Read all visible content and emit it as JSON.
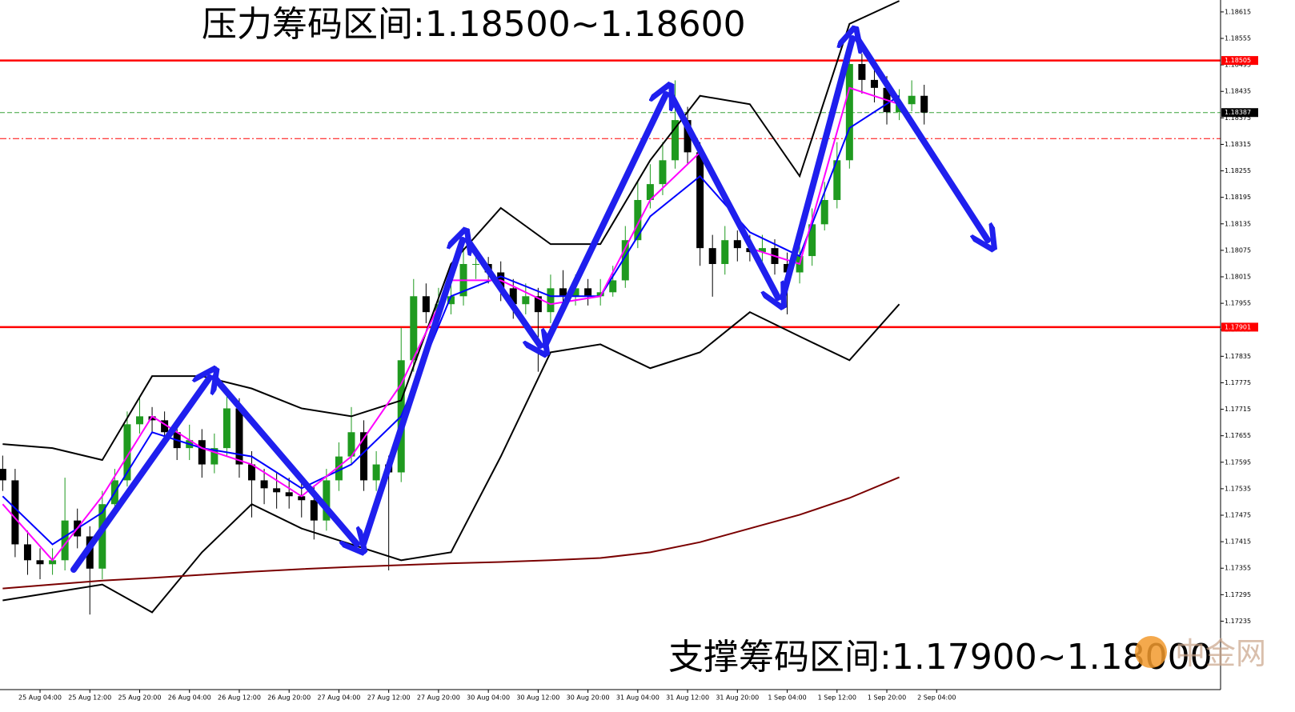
{
  "chart_data": {
    "type": "candlestick",
    "title": "压力筹码区间:1.18500~1.18600",
    "subtitle": "支撑筹码区间:1.17900~1.18000",
    "watermark": "中金网",
    "x": [
      -6,
      -4,
      -2,
      0,
      2,
      4,
      6,
      8,
      10,
      12,
      14,
      16,
      18,
      20,
      22,
      24,
      26,
      28,
      30,
      32,
      34,
      36,
      38,
      40,
      42,
      44,
      46,
      48,
      50,
      52,
      54,
      56,
      58,
      60,
      62,
      64,
      66,
      68,
      70,
      72,
      74,
      76,
      78,
      80,
      82,
      84,
      86,
      88,
      90,
      92,
      94,
      96,
      98,
      100,
      102,
      104,
      106,
      108,
      110,
      112,
      114,
      116,
      118,
      120,
      122,
      124,
      126,
      128,
      130,
      132,
      134,
      136,
      138,
      140,
      142
    ],
    "open": [
      1.1758,
      1.17554,
      1.17409,
      1.17373,
      1.17364,
      1.17373,
      1.17463,
      1.17427,
      1.17354,
      1.175,
      1.17554,
      1.17681,
      1.17699,
      1.1769,
      1.17663,
      1.17627,
      1.17645,
      1.1759,
      1.17627,
      1.17717,
      1.1759,
      1.17554,
      1.17536,
      1.17527,
      1.17518,
      1.17509,
      1.17463,
      1.17554,
      1.17608,
      1.17663,
      1.17554,
      1.1759,
      1.17572,
      1.17826,
      1.17971,
      1.17935,
      1.17953,
      1.17971,
      1.18044,
      1.18044,
      1.18025,
      1.17989,
      1.17953,
      1.17971,
      1.17935,
      1.17989,
      1.17971,
      1.17989,
      1.17971,
      1.1798,
      1.18007,
      1.18098,
      1.18189,
      1.18225,
      1.18279,
      1.1837,
      1.18297,
      1.1808,
      1.18044,
      1.18098,
      1.1808,
      1.18071,
      1.1808,
      1.18044,
      1.18025,
      1.18062,
      1.18134,
      1.18189,
      1.18279,
      1.18497,
      1.18461,
      1.18443,
      1.18388,
      1.18406,
      1.18425
    ],
    "high": [
      1.1761,
      1.1758,
      1.1744,
      1.174,
      1.174,
      1.1756,
      1.1749,
      1.1745,
      1.1753,
      1.1758,
      1.1771,
      1.1774,
      1.1772,
      1.1771,
      1.1769,
      1.1768,
      1.1767,
      1.1766,
      1.1775,
      1.1774,
      1.1762,
      1.1758,
      1.1757,
      1.1756,
      1.1755,
      1.1754,
      1.1758,
      1.1764,
      1.1772,
      1.1769,
      1.1762,
      1.1761,
      1.179,
      1.1801,
      1.18,
      1.1799,
      1.1801,
      1.1808,
      1.1807,
      1.1806,
      1.1805,
      1.1801,
      1.18,
      1.1799,
      1.1802,
      1.1803,
      1.1802,
      1.1801,
      1.1801,
      1.1804,
      1.1813,
      1.1823,
      1.1827,
      1.1832,
      1.1846,
      1.184,
      1.1832,
      1.1811,
      1.1813,
      1.1812,
      1.1811,
      1.1811,
      1.181,
      1.1807,
      1.1809,
      1.1817,
      1.1823,
      1.1832,
      1.1856,
      1.1852,
      1.1849,
      1.1847,
      1.1844,
      1.1846,
      1.1845
    ],
    "low": [
      1.1753,
      1.1738,
      1.1734,
      1.1733,
      1.1734,
      1.1735,
      1.174,
      1.1725,
      1.1733,
      1.1748,
      1.1754,
      1.1766,
      1.1766,
      1.1764,
      1.176,
      1.176,
      1.1756,
      1.1757,
      1.1761,
      1.1756,
      1.1747,
      1.175,
      1.1749,
      1.1749,
      1.1747,
      1.1742,
      1.1744,
      1.1753,
      1.1759,
      1.1753,
      1.1753,
      1.1735,
      1.1755,
      1.178,
      1.1791,
      1.1791,
      1.1793,
      1.1795,
      1.1801,
      1.18,
      1.1796,
      1.1792,
      1.1793,
      1.178,
      1.1791,
      1.1795,
      1.1795,
      1.1795,
      1.1795,
      1.1797,
      1.1799,
      1.1808,
      1.1817,
      1.182,
      1.1826,
      1.1827,
      1.1804,
      1.1797,
      1.1802,
      1.1805,
      1.1805,
      1.1805,
      1.1802,
      1.1793,
      1.18,
      1.1804,
      1.1812,
      1.1817,
      1.1826,
      1.1843,
      1.1841,
      1.1836,
      1.1837,
      1.1839,
      1.1836
    ],
    "close": [
      1.17554,
      1.17409,
      1.17373,
      1.17364,
      1.17373,
      1.17463,
      1.17427,
      1.17354,
      1.175,
      1.17554,
      1.17681,
      1.17699,
      1.1769,
      1.17663,
      1.17627,
      1.17645,
      1.1759,
      1.17627,
      1.17717,
      1.1759,
      1.17554,
      1.17536,
      1.17527,
      1.17518,
      1.17509,
      1.17463,
      1.17554,
      1.17608,
      1.17663,
      1.17554,
      1.1759,
      1.17572,
      1.17826,
      1.17971,
      1.17935,
      1.17953,
      1.17971,
      1.18044,
      1.18044,
      1.18025,
      1.17989,
      1.17953,
      1.17971,
      1.17935,
      1.17989,
      1.17971,
      1.17989,
      1.17971,
      1.1798,
      1.18007,
      1.18098,
      1.18189,
      1.18225,
      1.18279,
      1.1837,
      1.18297,
      1.1808,
      1.18044,
      1.18098,
      1.1808,
      1.18071,
      1.1808,
      1.18044,
      1.18025,
      1.18062,
      1.18134,
      1.18189,
      1.18279,
      1.18497,
      1.18461,
      1.18443,
      1.18388,
      1.18406,
      1.18425,
      1.18387
    ],
    "up_color": "#1f9a1f",
    "down_color": "#000000",
    "indicator_x": [
      -6,
      2,
      10,
      18,
      26,
      34,
      42,
      50,
      58,
      66,
      74,
      82,
      90,
      98,
      106,
      114,
      122,
      130,
      138
    ],
    "indicators": [
      {
        "color": "#000000",
        "values": [
          1.17636,
          1.17627,
          1.176,
          1.1779,
          1.1779,
          1.17762,
          1.17717,
          1.17699,
          1.17735,
          1.18044,
          1.18171,
          1.18089,
          1.18089,
          1.18279,
          1.18425,
          1.18406,
          1.18243,
          1.18588,
          1.1864
        ]
      },
      {
        "color": "#000000",
        "values": [
          1.17282,
          1.173,
          1.17318,
          1.17255,
          1.17391,
          1.175,
          1.17445,
          1.17409,
          1.17373,
          1.17391,
          1.17608,
          1.17844,
          1.17862,
          1.17808,
          1.17844,
          1.17935,
          1.1788,
          1.17826,
          1.17953
        ]
      },
      {
        "color": "#0000ff",
        "values": [
          1.17518,
          1.17409,
          1.17481,
          1.17663,
          1.17627,
          1.17608,
          1.17536,
          1.1759,
          1.17699,
          1.17971,
          1.18016,
          1.17971,
          1.17971,
          1.18152,
          1.18243,
          1.18116,
          1.18062,
          1.18352,
          1.18425
        ]
      },
      {
        "color": "#ff00ff",
        "values": [
          1.175,
          1.17373,
          1.17518,
          1.17699,
          1.17627,
          1.1759,
          1.17518,
          1.17608,
          1.17772,
          1.18007,
          1.18007,
          1.17953,
          1.17971,
          1.18189,
          1.18297,
          1.1808,
          1.18044,
          1.18443,
          1.18406
        ]
      },
      {
        "color": "#7a0000",
        "values": [
          1.17309,
          1.17318,
          1.17327,
          1.17333,
          1.1734,
          1.17347,
          1.17353,
          1.17358,
          1.17362,
          1.17366,
          1.17369,
          1.17373,
          1.17378,
          1.17391,
          1.17414,
          1.17445,
          1.17476,
          1.17514,
          1.17561
        ]
      }
    ],
    "hlines": [
      {
        "value": 1.18505,
        "color": "#ff0000",
        "style": "solid",
        "tag": true
      },
      {
        "value": 1.17901,
        "color": "#ff0000",
        "style": "solid",
        "tag": true
      },
      {
        "value": 1.18328,
        "color": "#ff0000",
        "style": "dashdot",
        "tag": false
      },
      {
        "value": 1.18387,
        "color": "#000000",
        "style": "dashed",
        "tag": true
      }
    ],
    "xlim": [
      -6.43,
      189.6
    ],
    "ylim": [
      1.1708,
      1.18642
    ],
    "xticks": [
      {
        "value": 0,
        "label": "25 Aug 04:00"
      },
      {
        "value": 8,
        "label": "25 Aug 12:00"
      },
      {
        "value": 16,
        "label": "25 Aug 20:00"
      },
      {
        "value": 24,
        "label": "26 Aug 04:00"
      },
      {
        "value": 32,
        "label": "26 Aug 12:00"
      },
      {
        "value": 40,
        "label": "26 Aug 20:00"
      },
      {
        "value": 48,
        "label": "27 Aug 04:00"
      },
      {
        "value": 56,
        "label": "27 Aug 12:00"
      },
      {
        "value": 64,
        "label": "27 Aug 20:00"
      },
      {
        "value": 72,
        "label": "30 Aug 04:00"
      },
      {
        "value": 80,
        "label": "30 Aug 12:00"
      },
      {
        "value": 88,
        "label": "30 Aug 20:00"
      },
      {
        "value": 96,
        "label": "31 Aug 04:00"
      },
      {
        "value": 104,
        "label": "31 Aug 12:00"
      },
      {
        "value": 112,
        "label": "31 Aug 20:00"
      },
      {
        "value": 120,
        "label": "1 Sep 04:00"
      },
      {
        "value": 128,
        "label": "1 Sep 12:00"
      },
      {
        "value": 136,
        "label": "1 Sep 20:00"
      },
      {
        "value": 144,
        "label": "2 Sep 04:00"
      }
    ],
    "yticks": [
      1.17235,
      1.17295,
      1.17355,
      1.17415,
      1.17475,
      1.17535,
      1.17595,
      1.17655,
      1.17715,
      1.17775,
      1.17835,
      1.17895,
      1.17955,
      1.18015,
      1.18075,
      1.18135,
      1.18195,
      1.18255,
      1.18315,
      1.18375,
      1.18435,
      1.18495,
      1.18555,
      1.18615
    ]
  }
}
